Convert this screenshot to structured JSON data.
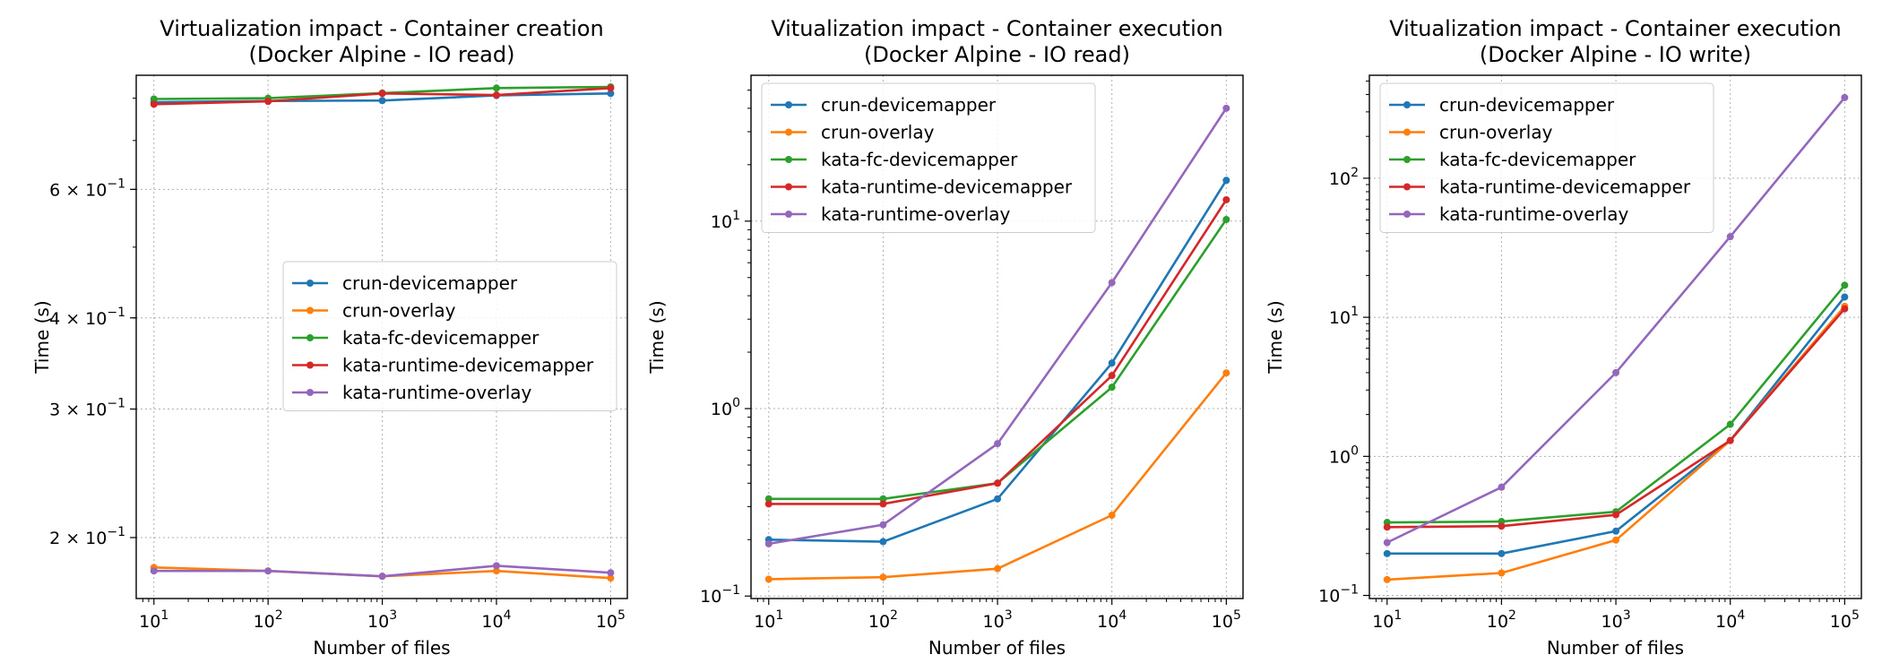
{
  "chart_data": [
    {
      "type": "line",
      "title": "Virtualization impact - Container creation\n(Docker Alpine - IO read)",
      "xlabel": "Number of files",
      "ylabel": "Time (s)",
      "xscale": "log",
      "yscale": "log",
      "xlim": [
        7,
        140000
      ],
      "ylim": [
        0.165,
        0.86
      ],
      "x": [
        10,
        100,
        1000,
        10000,
        100000
      ],
      "xticks": [
        {
          "v": 10,
          "b": "10",
          "e": "1"
        },
        {
          "v": 100,
          "b": "10",
          "e": "2"
        },
        {
          "v": 1000,
          "b": "10",
          "e": "3"
        },
        {
          "v": 10000,
          "b": "10",
          "e": "4"
        },
        {
          "v": 100000,
          "b": "10",
          "e": "5"
        }
      ],
      "yticks": [
        {
          "v": 0.2,
          "m": "2",
          "b": "10",
          "e": "−1"
        },
        {
          "v": 0.3,
          "m": "3",
          "b": "10",
          "e": "−1"
        },
        {
          "v": 0.4,
          "m": "4",
          "b": "10",
          "e": "−1"
        },
        {
          "v": 0.6,
          "m": "6",
          "b": "10",
          "e": "−1"
        }
      ],
      "grid": true,
      "legend_position": "center-right",
      "series": [
        {
          "name": "crun-devicemapper",
          "color": "#1f77b4",
          "values": [
            0.79,
            0.793,
            0.794,
            0.807,
            0.812
          ]
        },
        {
          "name": "crun-overlay",
          "color": "#ff7f0e",
          "values": [
            0.182,
            0.18,
            0.177,
            0.18,
            0.176
          ]
        },
        {
          "name": "kata-fc-devicemapper",
          "color": "#2ca02c",
          "values": [
            0.798,
            0.8,
            0.813,
            0.826,
            0.829
          ]
        },
        {
          "name": "kata-runtime-devicemapper",
          "color": "#d62728",
          "values": [
            0.785,
            0.792,
            0.812,
            0.808,
            0.826
          ]
        },
        {
          "name": "kata-runtime-overlay",
          "color": "#9467bd",
          "values": [
            0.18,
            0.18,
            0.177,
            0.183,
            0.179
          ]
        }
      ]
    },
    {
      "type": "line",
      "title": "Vitualization impact - Container execution\n(Docker Alpine - IO read)",
      "xlabel": "Number of files",
      "ylabel": "Time (s)",
      "xscale": "log",
      "yscale": "log",
      "xlim": [
        7,
        140000
      ],
      "ylim": [
        0.097,
        60
      ],
      "x": [
        10,
        100,
        1000,
        10000,
        100000
      ],
      "xticks": [
        {
          "v": 10,
          "b": "10",
          "e": "1"
        },
        {
          "v": 100,
          "b": "10",
          "e": "2"
        },
        {
          "v": 1000,
          "b": "10",
          "e": "3"
        },
        {
          "v": 10000,
          "b": "10",
          "e": "4"
        },
        {
          "v": 100000,
          "b": "10",
          "e": "5"
        }
      ],
      "yticks": [
        {
          "v": 0.1,
          "m": "",
          "b": "10",
          "e": "−1"
        },
        {
          "v": 1,
          "m": "",
          "b": "10",
          "e": "0"
        },
        {
          "v": 10,
          "m": "",
          "b": "10",
          "e": "1"
        }
      ],
      "grid": true,
      "legend_position": "upper-left",
      "series": [
        {
          "name": "crun-devicemapper",
          "color": "#1f77b4",
          "values": [
            0.2,
            0.195,
            0.33,
            1.75,
            16.5
          ]
        },
        {
          "name": "crun-overlay",
          "color": "#ff7f0e",
          "values": [
            0.123,
            0.126,
            0.14,
            0.27,
            1.55
          ]
        },
        {
          "name": "kata-fc-devicemapper",
          "color": "#2ca02c",
          "values": [
            0.33,
            0.33,
            0.4,
            1.3,
            10.2
          ]
        },
        {
          "name": "kata-runtime-devicemapper",
          "color": "#d62728",
          "values": [
            0.31,
            0.31,
            0.4,
            1.5,
            13
          ]
        },
        {
          "name": "kata-runtime-overlay",
          "color": "#9467bd",
          "values": [
            0.19,
            0.24,
            0.65,
            4.7,
            40
          ]
        }
      ]
    },
    {
      "type": "line",
      "title": "Vitualization impact - Container execution\n(Docker Alpine - IO write)",
      "xlabel": "Number of files",
      "ylabel": "Time (s)",
      "xscale": "log",
      "yscale": "log",
      "xlim": [
        7,
        140000
      ],
      "ylim": [
        0.095,
        550
      ],
      "x": [
        10,
        100,
        1000,
        10000,
        100000
      ],
      "xticks": [
        {
          "v": 10,
          "b": "10",
          "e": "1"
        },
        {
          "v": 100,
          "b": "10",
          "e": "2"
        },
        {
          "v": 1000,
          "b": "10",
          "e": "3"
        },
        {
          "v": 10000,
          "b": "10",
          "e": "4"
        },
        {
          "v": 100000,
          "b": "10",
          "e": "5"
        }
      ],
      "yticks": [
        {
          "v": 0.1,
          "m": "",
          "b": "10",
          "e": "−1"
        },
        {
          "v": 1,
          "m": "",
          "b": "10",
          "e": "0"
        },
        {
          "v": 10,
          "m": "",
          "b": "10",
          "e": "1"
        },
        {
          "v": 100,
          "m": "",
          "b": "10",
          "e": "2"
        }
      ],
      "grid": true,
      "legend_position": "upper-left",
      "series": [
        {
          "name": "crun-devicemapper",
          "color": "#1f77b4",
          "values": [
            0.2,
            0.2,
            0.29,
            1.3,
            14
          ]
        },
        {
          "name": "crun-overlay",
          "color": "#ff7f0e",
          "values": [
            0.13,
            0.145,
            0.25,
            1.3,
            12
          ]
        },
        {
          "name": "kata-fc-devicemapper",
          "color": "#2ca02c",
          "values": [
            0.335,
            0.34,
            0.4,
            1.7,
            17
          ]
        },
        {
          "name": "kata-runtime-devicemapper",
          "color": "#d62728",
          "values": [
            0.31,
            0.315,
            0.38,
            1.3,
            11.5
          ]
        },
        {
          "name": "kata-runtime-overlay",
          "color": "#9467bd",
          "values": [
            0.24,
            0.6,
            4.0,
            38,
            380
          ]
        }
      ]
    }
  ]
}
